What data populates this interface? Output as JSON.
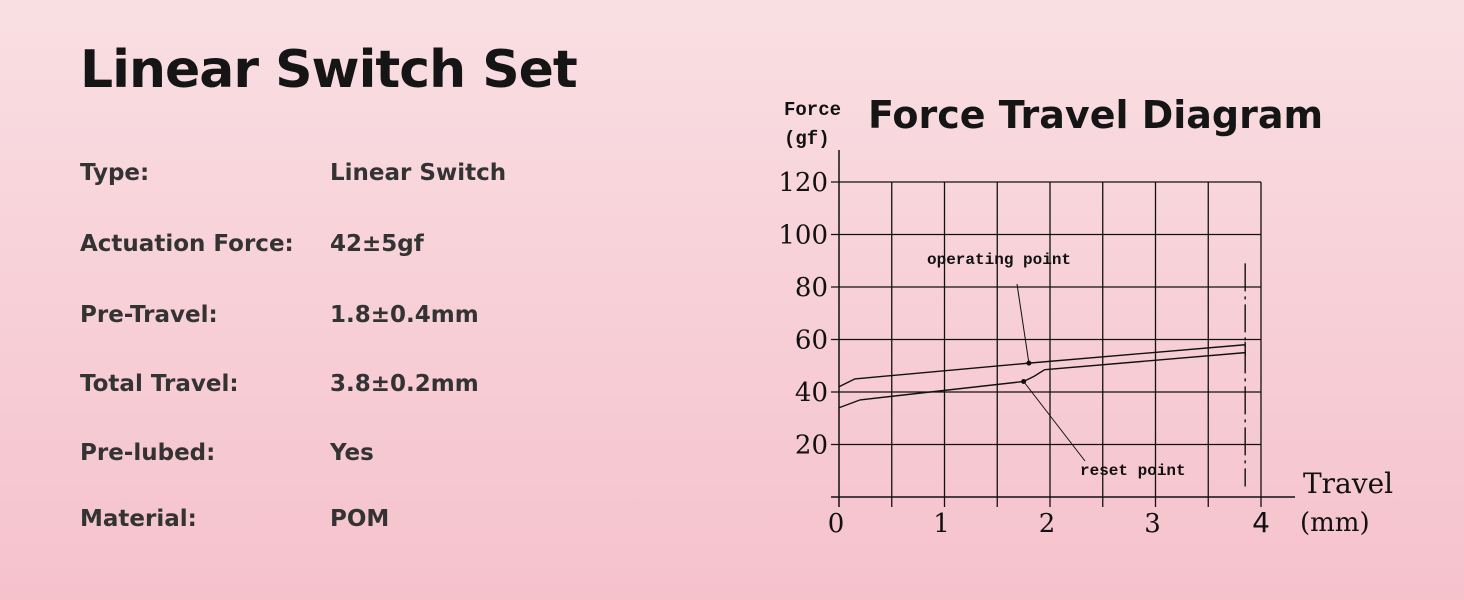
{
  "title": "Linear Switch Set",
  "specs": [
    {
      "label": "Type:",
      "value": "Linear Switch"
    },
    {
      "label": "Actuation Force:",
      "value": "42±5gf"
    },
    {
      "label": "Pre-Travel:",
      "value": "1.8±0.4mm"
    },
    {
      "label": "Total Travel:",
      "value": "3.8±0.2mm"
    },
    {
      "label": "Pre-lubed:",
      "value": "Yes"
    },
    {
      "label": "Material:",
      "value": "POM"
    }
  ],
  "chart_data": {
    "type": "line",
    "title": "Force Travel Diagram",
    "ylabel": [
      "Force",
      "(gf)"
    ],
    "xlabel": [
      "Travel",
      "(mm)"
    ],
    "xlim": [
      0,
      4
    ],
    "ylim": [
      0,
      120
    ],
    "xticks": [
      "0",
      "1",
      "2",
      "3",
      "4"
    ],
    "yticks": [
      "20",
      "40",
      "60",
      "80",
      "100",
      "120"
    ],
    "grid": true,
    "series": [
      {
        "x": [
          0,
          0.15,
          1.8,
          3.85
        ],
        "y": [
          42,
          45,
          51,
          58
        ]
      },
      {
        "x": [
          0,
          0.2,
          1.75,
          1.85,
          1.95,
          3.85
        ],
        "y": [
          34,
          37,
          44,
          46,
          48.5,
          55
        ]
      }
    ],
    "annotations": [
      {
        "text": "operating point",
        "x": 1.8,
        "y": 51
      },
      {
        "text": "reset point",
        "x": 1.75,
        "y": 44
      }
    ],
    "total_travel_marker": 3.85
  }
}
